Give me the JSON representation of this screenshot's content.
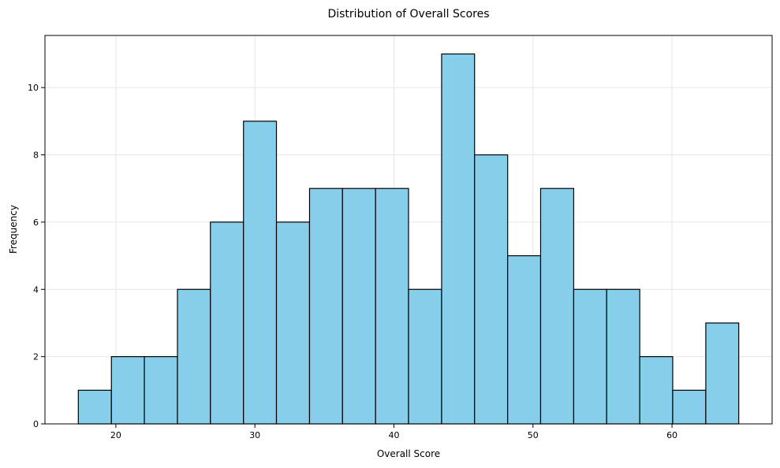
{
  "chart_data": {
    "type": "bar",
    "title": "Distribution of Overall Scores",
    "xlabel": "Overall Score",
    "ylabel": "Frequency",
    "bin_edges": [
      17.3,
      19.68,
      22.05,
      24.43,
      26.8,
      29.18,
      31.55,
      33.93,
      36.3,
      38.68,
      41.05,
      43.43,
      45.8,
      48.18,
      50.55,
      52.93,
      55.3,
      57.68,
      60.05,
      62.43,
      64.8
    ],
    "values": [
      1,
      2,
      2,
      4,
      6,
      9,
      6,
      7,
      7,
      7,
      4,
      11,
      8,
      5,
      7,
      4,
      4,
      2,
      1,
      3
    ],
    "xlim": [
      14.9,
      67.2
    ],
    "ylim": [
      0,
      11.55
    ],
    "xticks": [
      20,
      30,
      40,
      50,
      60
    ],
    "yticks": [
      0,
      2,
      4,
      6,
      8,
      10
    ],
    "grid": true,
    "bar_color": "#87CEEB",
    "edge_color": "#000000"
  }
}
